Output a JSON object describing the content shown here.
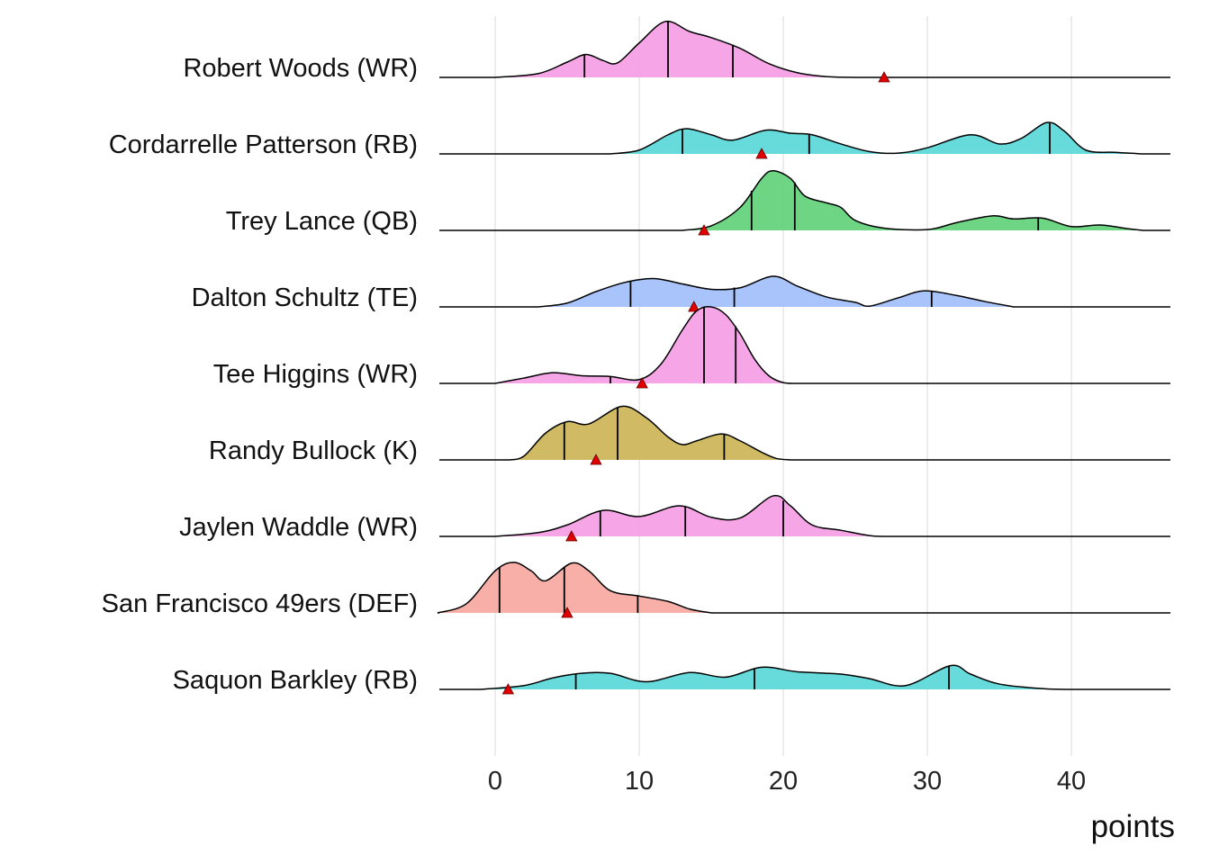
{
  "chart_data": {
    "type": "ridgeline",
    "title": "",
    "xlabel": "points",
    "ylabel": "",
    "xlim": [
      -4,
      47
    ],
    "xticks": [
      "0",
      "10",
      "20",
      "30",
      "40"
    ],
    "xtick_values": [
      0,
      10,
      20,
      30,
      40
    ],
    "grid": true,
    "density_note": "relative density, 1 = one row spacing",
    "series": [
      {
        "name": "Robert Woods (WR)",
        "color": "#F5A0E6",
        "quantiles": [
          6.2,
          12.0,
          16.5
        ],
        "marker": 27.0,
        "density": [
          [
            0,
            0
          ],
          [
            3,
            0.05
          ],
          [
            5,
            0.2
          ],
          [
            6.3,
            0.3
          ],
          [
            7.5,
            0.22
          ],
          [
            8.5,
            0.19
          ],
          [
            10,
            0.45
          ],
          [
            11.8,
            0.73
          ],
          [
            13.5,
            0.6
          ],
          [
            15,
            0.52
          ],
          [
            17,
            0.38
          ],
          [
            19,
            0.18
          ],
          [
            21,
            0.06
          ],
          [
            23,
            0.01
          ],
          [
            25,
            0
          ]
        ]
      },
      {
        "name": "Cordarrelle Patterson (RB)",
        "color": "#5FD8DA",
        "quantiles": [
          13.0,
          21.8,
          38.5
        ],
        "marker": 18.5,
        "density": [
          [
            8,
            0
          ],
          [
            10,
            0.05
          ],
          [
            12,
            0.25
          ],
          [
            13.3,
            0.33
          ],
          [
            15,
            0.25
          ],
          [
            16.5,
            0.18
          ],
          [
            18.8,
            0.31
          ],
          [
            20.5,
            0.27
          ],
          [
            22,
            0.25
          ],
          [
            24,
            0.13
          ],
          [
            26,
            0.03
          ],
          [
            28,
            0.01
          ],
          [
            30,
            0.08
          ],
          [
            33,
            0.25
          ],
          [
            35,
            0.13
          ],
          [
            36.5,
            0.2
          ],
          [
            38.3,
            0.41
          ],
          [
            39.5,
            0.3
          ],
          [
            41,
            0.05
          ],
          [
            43,
            0.02
          ],
          [
            45,
            0
          ]
        ]
      },
      {
        "name": "Trey Lance (QB)",
        "color": "#66D37E",
        "quantiles": [
          17.8,
          20.8,
          37.7
        ],
        "marker": 14.5,
        "density": [
          [
            13,
            0
          ],
          [
            15,
            0.06
          ],
          [
            17,
            0.3
          ],
          [
            18.5,
            0.68
          ],
          [
            19.3,
            0.78
          ],
          [
            20.5,
            0.68
          ],
          [
            21.5,
            0.45
          ],
          [
            23,
            0.36
          ],
          [
            24,
            0.3
          ],
          [
            25,
            0.13
          ],
          [
            27,
            0.03
          ],
          [
            30,
            0.01
          ],
          [
            32,
            0.1
          ],
          [
            34.5,
            0.19
          ],
          [
            36,
            0.15
          ],
          [
            38,
            0.16
          ],
          [
            40,
            0.05
          ],
          [
            42,
            0.07
          ],
          [
            44,
            0.02
          ],
          [
            45,
            0
          ]
        ]
      },
      {
        "name": "Dalton Schultz (TE)",
        "color": "#A3C1FB",
        "quantiles": [
          9.4,
          16.6,
          30.3
        ],
        "marker": 13.8,
        "density": [
          [
            3,
            0
          ],
          [
            5,
            0.05
          ],
          [
            7,
            0.2
          ],
          [
            9,
            0.32
          ],
          [
            11,
            0.37
          ],
          [
            13,
            0.3
          ],
          [
            15,
            0.23
          ],
          [
            17,
            0.25
          ],
          [
            19.3,
            0.4
          ],
          [
            21,
            0.27
          ],
          [
            23,
            0.13
          ],
          [
            25,
            0.06
          ],
          [
            26,
            0.01
          ],
          [
            28,
            0.12
          ],
          [
            29.8,
            0.21
          ],
          [
            32,
            0.15
          ],
          [
            34,
            0.07
          ],
          [
            36,
            0
          ]
        ]
      },
      {
        "name": "Tee Higgins (WR)",
        "color": "#F5A0E6",
        "quantiles": [
          8.0,
          14.5,
          16.7
        ],
        "marker": 10.2,
        "density": [
          [
            0,
            0
          ],
          [
            2,
            0.07
          ],
          [
            4,
            0.14
          ],
          [
            6,
            0.1
          ],
          [
            8,
            0.09
          ],
          [
            10,
            0.05
          ],
          [
            11.5,
            0.25
          ],
          [
            13,
            0.7
          ],
          [
            14,
            0.95
          ],
          [
            15,
            1.0
          ],
          [
            16,
            0.9
          ],
          [
            17,
            0.65
          ],
          [
            18,
            0.32
          ],
          [
            19,
            0.1
          ],
          [
            20,
            0.01
          ],
          [
            21,
            0
          ]
        ]
      },
      {
        "name": "Randy Bullock (K)",
        "color": "#CDB75C",
        "quantiles": [
          4.8,
          8.5,
          15.9
        ],
        "marker": 7.0,
        "density": [
          [
            1,
            0
          ],
          [
            2,
            0.05
          ],
          [
            3.5,
            0.35
          ],
          [
            5,
            0.5
          ],
          [
            6.5,
            0.47
          ],
          [
            8.8,
            0.7
          ],
          [
            10.5,
            0.55
          ],
          [
            12,
            0.3
          ],
          [
            13,
            0.2
          ],
          [
            14,
            0.25
          ],
          [
            15.7,
            0.34
          ],
          [
            17,
            0.25
          ],
          [
            18.5,
            0.1
          ],
          [
            19.5,
            0.02
          ],
          [
            20.5,
            0
          ]
        ]
      },
      {
        "name": "Jaylen Waddle (WR)",
        "color": "#F5A0E6",
        "quantiles": [
          7.3,
          13.2,
          20.0
        ],
        "marker": 5.3,
        "density": [
          [
            0,
            0
          ],
          [
            3,
            0.05
          ],
          [
            5,
            0.15
          ],
          [
            7.5,
            0.34
          ],
          [
            10,
            0.26
          ],
          [
            12.8,
            0.4
          ],
          [
            15,
            0.25
          ],
          [
            17,
            0.24
          ],
          [
            19.3,
            0.53
          ],
          [
            20.5,
            0.4
          ],
          [
            22,
            0.15
          ],
          [
            24,
            0.08
          ],
          [
            26,
            0.01
          ],
          [
            27,
            0
          ]
        ]
      },
      {
        "name": "San Francisco 49ers (DEF)",
        "color": "#F8ABA3",
        "quantiles": [
          0.3,
          4.8,
          9.9
        ],
        "marker": 5.0,
        "density": [
          [
            -4,
            0
          ],
          [
            -2,
            0.12
          ],
          [
            0,
            0.55
          ],
          [
            1.3,
            0.66
          ],
          [
            2.5,
            0.55
          ],
          [
            3.5,
            0.42
          ],
          [
            5.3,
            0.65
          ],
          [
            6.5,
            0.55
          ],
          [
            8,
            0.29
          ],
          [
            10,
            0.22
          ],
          [
            12,
            0.15
          ],
          [
            13.5,
            0.05
          ],
          [
            15,
            0
          ]
        ]
      },
      {
        "name": "Saquon Barkley (RB)",
        "color": "#5FD8DA",
        "quantiles": [
          5.6,
          18.0,
          31.5
        ],
        "marker": 0.9,
        "density": [
          [
            -1,
            0
          ],
          [
            2,
            0.05
          ],
          [
            4,
            0.15
          ],
          [
            6,
            0.21
          ],
          [
            8,
            0.21
          ],
          [
            10.5,
            0.1
          ],
          [
            13.5,
            0.22
          ],
          [
            16,
            0.16
          ],
          [
            18.5,
            0.29
          ],
          [
            21,
            0.23
          ],
          [
            24,
            0.2
          ],
          [
            26,
            0.14
          ],
          [
            28.5,
            0.05
          ],
          [
            31.6,
            0.31
          ],
          [
            33,
            0.2
          ],
          [
            35,
            0.07
          ],
          [
            38,
            0.01
          ],
          [
            40,
            0
          ]
        ]
      }
    ]
  }
}
